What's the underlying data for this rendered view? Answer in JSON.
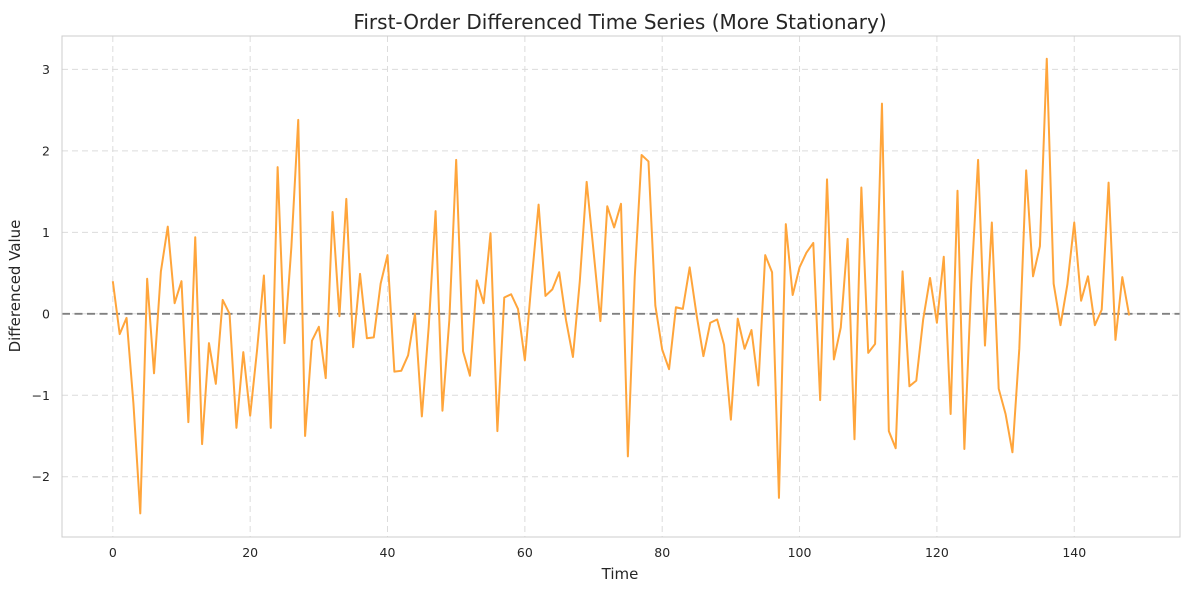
{
  "chart_data": {
    "type": "line",
    "title": "First-Order Differenced Time Series (More Stationary)",
    "xlabel": "Time",
    "ylabel": "Differenced Value",
    "xlim": [
      -7.4,
      155.4
    ],
    "ylim": [
      -2.74,
      3.41
    ],
    "xticks": [
      0,
      20,
      40,
      60,
      80,
      100,
      120,
      140
    ],
    "yticks": [
      -2,
      -1,
      0,
      1,
      2,
      3
    ],
    "grid": true,
    "reference_line": {
      "y": 0,
      "style": "dashed",
      "color": "#808080"
    },
    "series": [
      {
        "color": "#ffa53b",
        "x": [
          0,
          1,
          2,
          3,
          4,
          5,
          6,
          7,
          8,
          9,
          10,
          11,
          12,
          13,
          14,
          15,
          16,
          17,
          18,
          19,
          20,
          21,
          22,
          23,
          24,
          25,
          26,
          27,
          28,
          29,
          30,
          31,
          32,
          33,
          34,
          35,
          36,
          37,
          38,
          39,
          40,
          41,
          42,
          43,
          44,
          45,
          46,
          47,
          48,
          49,
          50,
          51,
          52,
          53,
          54,
          55,
          56,
          57,
          58,
          59,
          60,
          61,
          62,
          63,
          64,
          65,
          66,
          67,
          68,
          69,
          70,
          71,
          72,
          73,
          74,
          75,
          76,
          77,
          78,
          79,
          80,
          81,
          82,
          83,
          84,
          85,
          86,
          87,
          88,
          89,
          90,
          91,
          92,
          93,
          94,
          95,
          96,
          97,
          98,
          99,
          100,
          101,
          102,
          103,
          104,
          105,
          106,
          107,
          108,
          109,
          110,
          111,
          112,
          113,
          114,
          115,
          116,
          117,
          118,
          119,
          120,
          121,
          122,
          123,
          124,
          125,
          126,
          127,
          128,
          129,
          130,
          131,
          132,
          133,
          134,
          135,
          136,
          137,
          138,
          139,
          140,
          141,
          142,
          143,
          144,
          145,
          146,
          147,
          148
        ],
        "values": [
          0.4,
          -0.25,
          -0.05,
          -1.1,
          -2.45,
          0.43,
          -0.73,
          0.52,
          1.07,
          0.13,
          0.4,
          -1.33,
          0.94,
          -1.6,
          -0.36,
          -0.86,
          0.17,
          0.0,
          -1.4,
          -0.47,
          -1.25,
          -0.45,
          0.47,
          -1.4,
          1.8,
          -0.36,
          0.82,
          2.38,
          -1.5,
          -0.33,
          -0.16,
          -0.79,
          1.25,
          -0.03,
          1.41,
          -0.41,
          0.49,
          -0.3,
          -0.29,
          0.37,
          0.72,
          -0.71,
          -0.7,
          -0.51,
          0.0,
          -1.26,
          -0.16,
          1.26,
          -1.19,
          -0.08,
          1.89,
          -0.46,
          -0.76,
          0.41,
          0.13,
          0.99,
          -1.44,
          0.2,
          0.24,
          0.06,
          -0.57,
          0.42,
          1.34,
          0.22,
          0.3,
          0.51,
          -0.08,
          -0.53,
          0.4,
          1.62,
          0.77,
          -0.09,
          1.32,
          1.06,
          1.35,
          -1.75,
          0.45,
          1.95,
          1.87,
          0.1,
          -0.44,
          -0.68,
          0.08,
          0.06,
          0.57,
          -0.01,
          -0.52,
          -0.11,
          -0.07,
          -0.38,
          -1.3,
          -0.06,
          -0.43,
          -0.2,
          -0.88,
          0.72,
          0.51,
          -2.26,
          1.1,
          0.23,
          0.57,
          0.75,
          0.87,
          -1.06,
          1.65,
          -0.56,
          -0.17,
          0.92,
          -1.54,
          1.55,
          -0.48,
          -0.37,
          2.58,
          -1.44,
          -1.65,
          0.52,
          -0.89,
          -0.82,
          -0.07,
          0.44,
          -0.11,
          0.7,
          -1.23,
          1.51,
          -1.66,
          0.36,
          1.89,
          -0.39,
          1.12,
          -0.92,
          -1.23,
          -1.7,
          -0.43,
          1.76,
          0.46,
          0.83,
          3.13,
          0.37,
          -0.14,
          0.36,
          1.12,
          0.16,
          0.46,
          -0.14,
          0.05,
          1.61,
          -0.32,
          0.45,
          -0.02
        ]
      }
    ]
  }
}
